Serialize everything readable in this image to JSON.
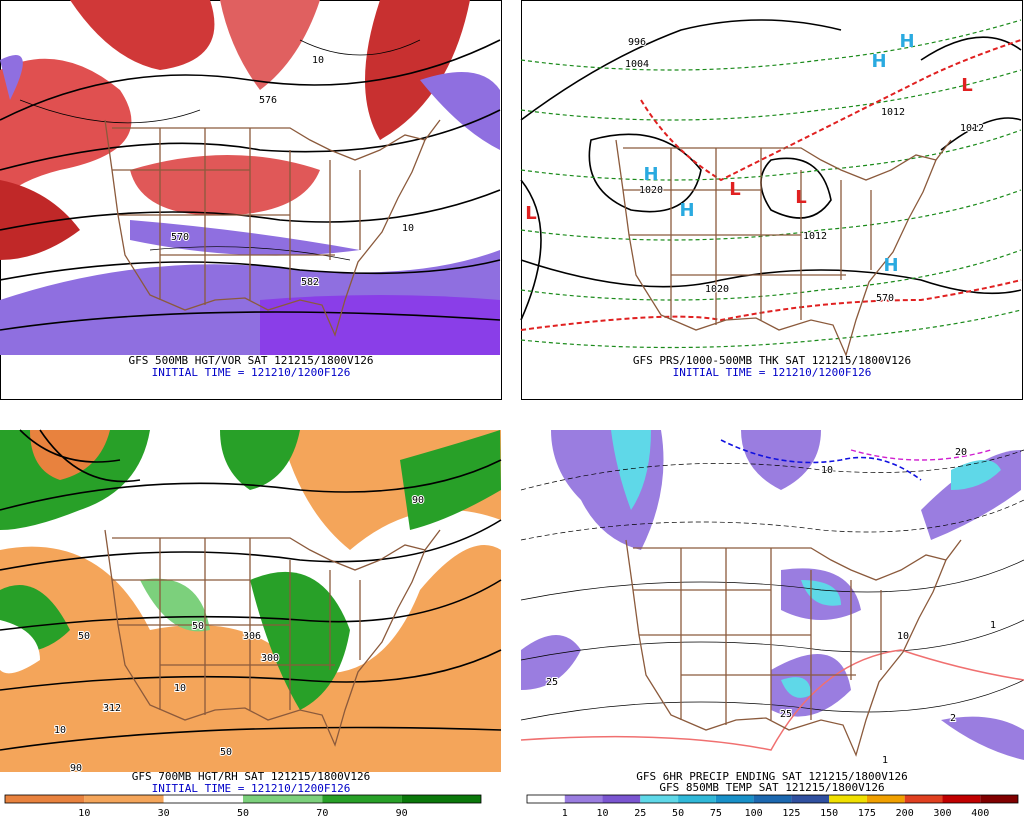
{
  "panels": [
    {
      "title": "GFS 500MB HGT/VOR SAT 121215/1800V126",
      "subtitle": "INITIAL TIME = 121210/1200F126",
      "labels": [
        "570",
        "10",
        "10",
        "582",
        "576"
      ]
    },
    {
      "title": "GFS PRS/1000-500MB THK SAT 121215/1800V126",
      "subtitle": "INITIAL TIME = 121210/1200F126",
      "labels": [
        "996",
        "1004",
        "1020",
        "1012",
        "1020",
        "1012",
        "570",
        "1012"
      ],
      "highs": [
        "H",
        "H",
        "H",
        "H",
        "H"
      ],
      "lows": [
        "L",
        "L",
        "L",
        "L"
      ]
    },
    {
      "title": "GFS 700MB HGT/RH SAT 121215/1800V126",
      "subtitle": "INITIAL TIME = 121210/1200F126",
      "labels": [
        "50",
        "306",
        "300",
        "312",
        "90",
        "10",
        "50",
        "10",
        "90",
        "50"
      ]
    },
    {
      "title": "GFS 6HR PRECIP ENDING SAT 121215/1800V126",
      "subtitle": "GFS 850MB TEMP SAT 121215/1800V126",
      "labels": [
        "25",
        "25",
        "2",
        "1",
        "10",
        "20",
        "10",
        "1"
      ]
    }
  ],
  "colorbars": {
    "rh": {
      "labels": [
        "10",
        "30",
        "50",
        "70",
        "90"
      ],
      "colors": [
        "#e8823e",
        "#f4a55a",
        "#ffffff",
        "#7cd07c",
        "#28a028",
        "#0a780a"
      ]
    },
    "precip": {
      "labels": [
        "1",
        "10",
        "25",
        "50",
        "75",
        "100",
        "125",
        "150",
        "175",
        "200",
        "300",
        "400"
      ],
      "colors": [
        "#ffffff",
        "#9a7de0",
        "#7a55d0",
        "#5fd8e8",
        "#30b8d8",
        "#1890c8",
        "#1c68b0",
        "#3050a0",
        "#f0e000",
        "#f0a000",
        "#e04020",
        "#c00000",
        "#800000"
      ]
    }
  }
}
